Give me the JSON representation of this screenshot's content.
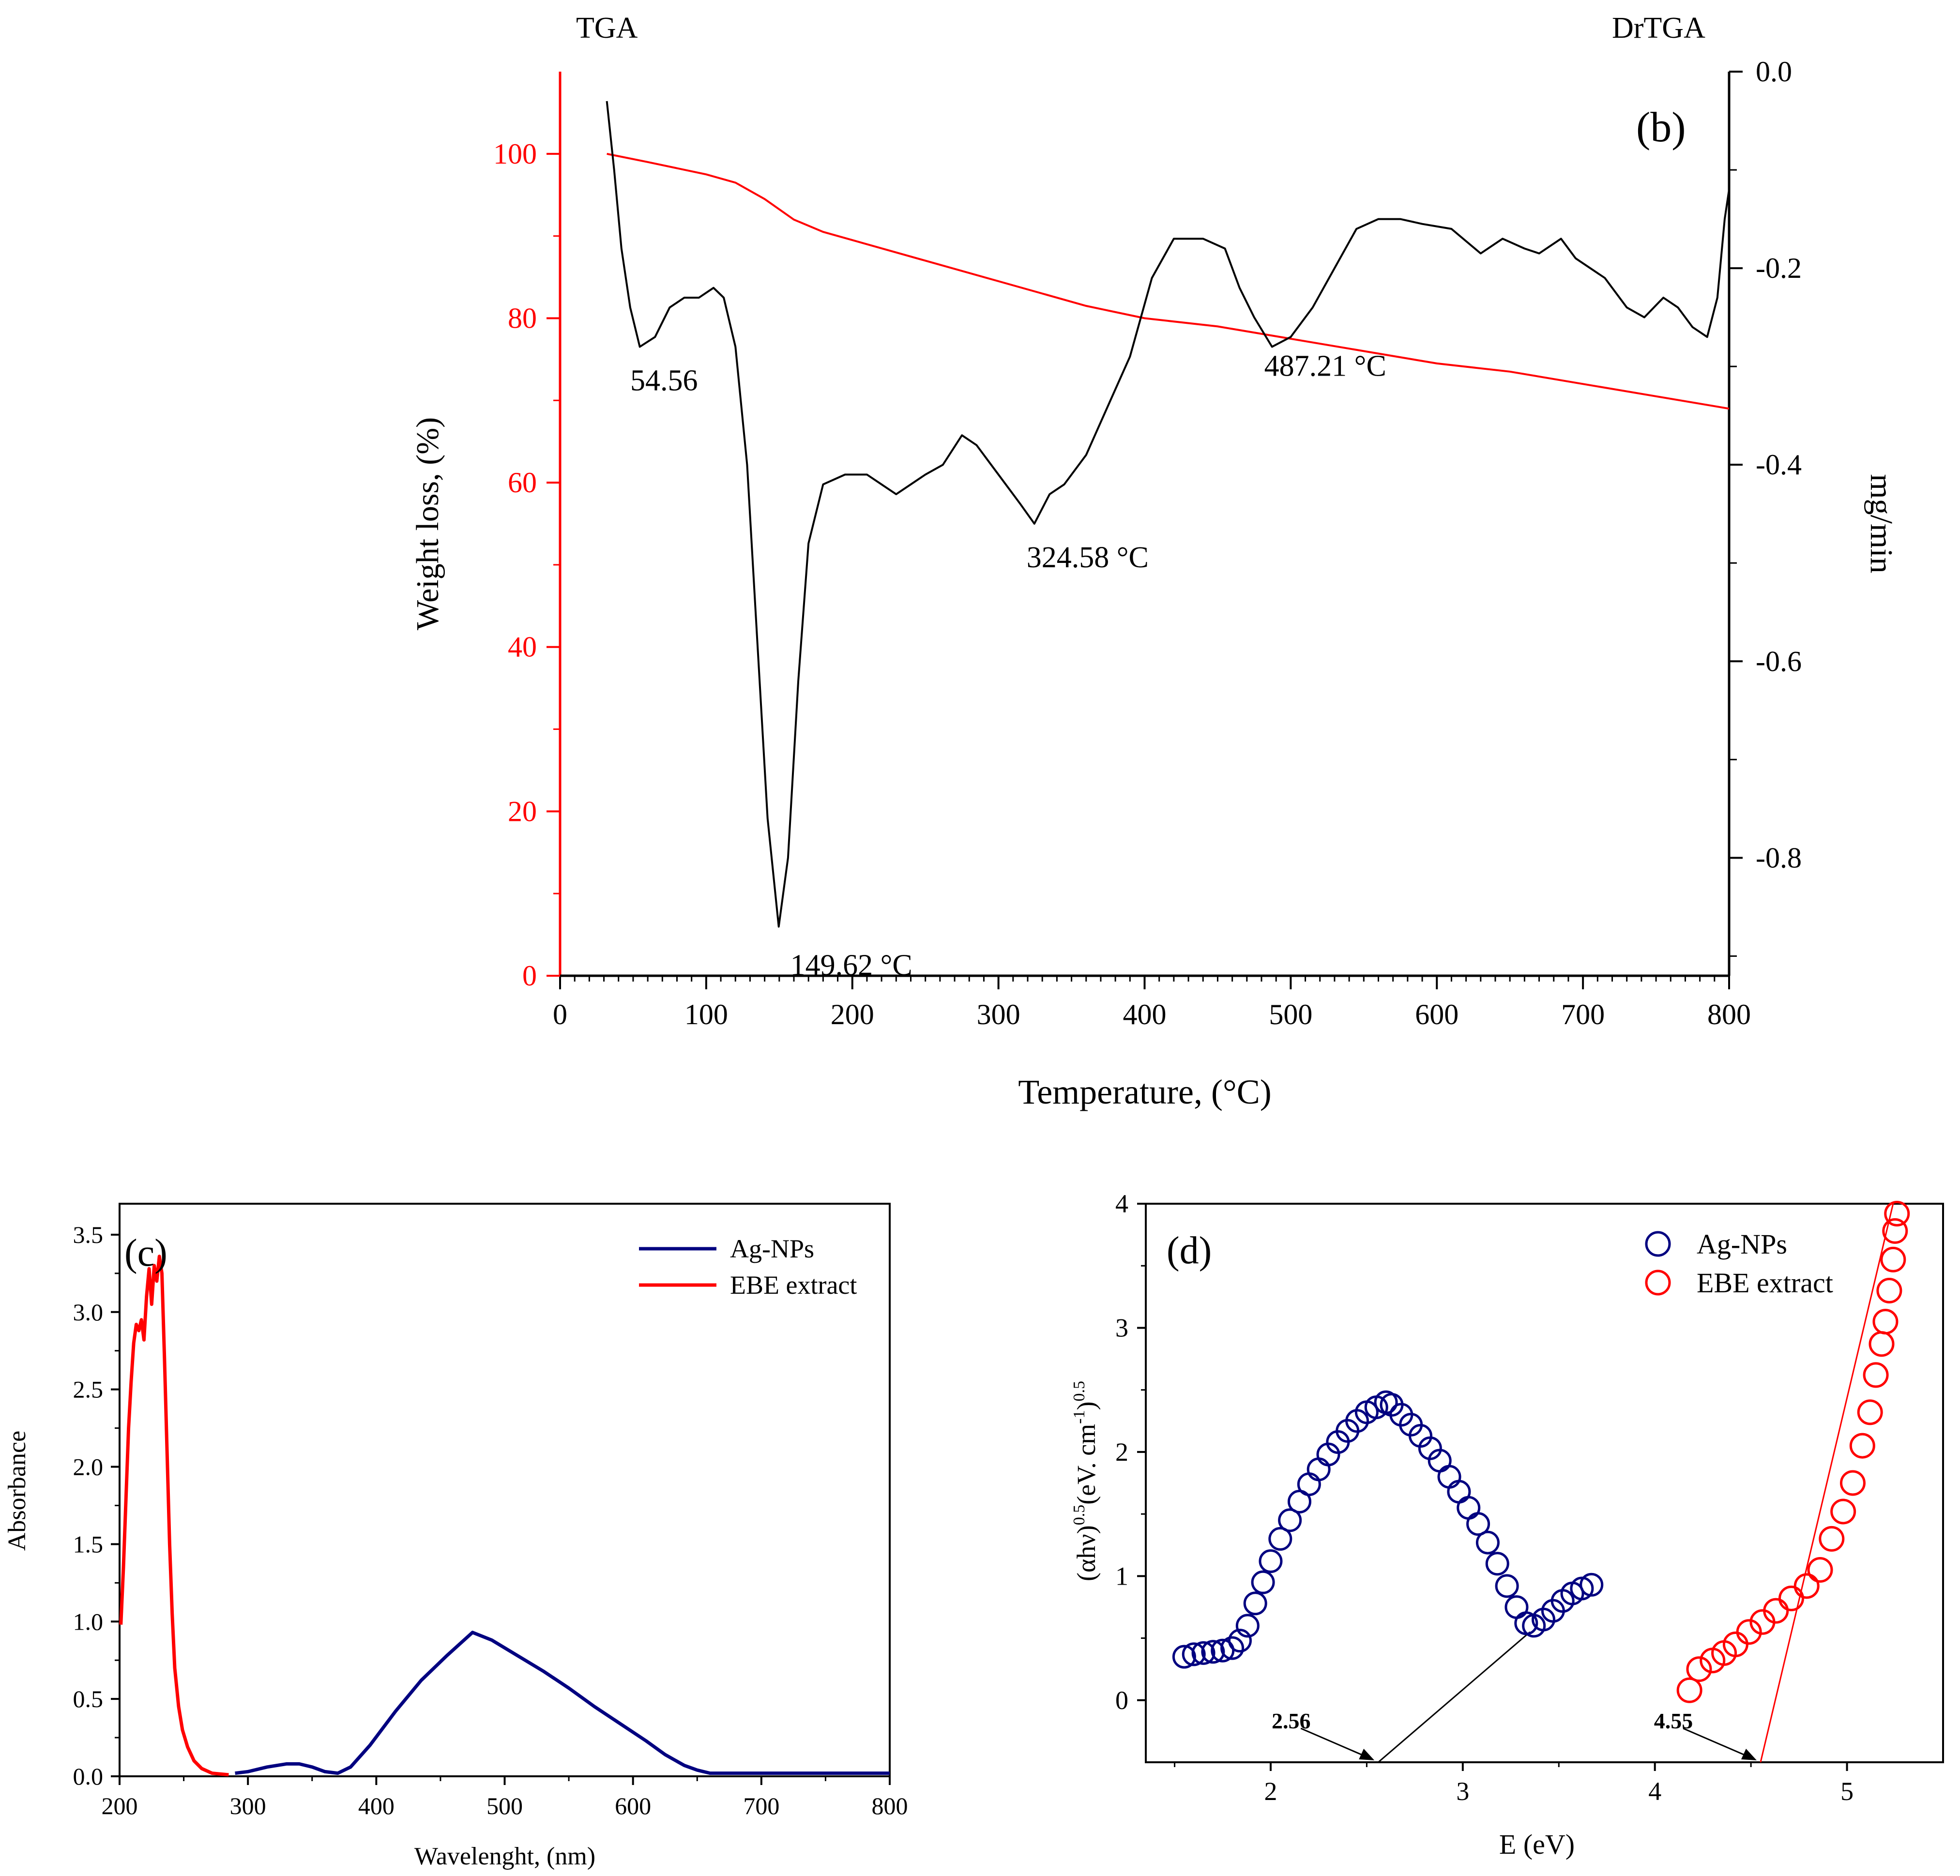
{
  "colors": {
    "tga": "#ff0000",
    "drtga": "#000000",
    "ag": "#000080",
    "ebe": "#ff0000",
    "axis": "#000000"
  },
  "chart_data": [
    {
      "id": "b",
      "type": "line",
      "panel_label": "(b)",
      "left_title": "TGA",
      "right_title": "DrTGA",
      "xlabel": "Temperature, (°C)",
      "ylabel": "Weight loss, (%)",
      "y2label": "mg/min",
      "xlim": [
        0,
        800
      ],
      "ylim": [
        0,
        110
      ],
      "y2lim": [
        -0.92,
        0.0
      ],
      "xticks": [
        0,
        100,
        200,
        300,
        400,
        500,
        600,
        700,
        800
      ],
      "yticks": [
        0,
        20,
        40,
        60,
        80,
        100
      ],
      "y2ticks": [
        0.0,
        -0.2,
        -0.4,
        -0.6,
        -0.8
      ],
      "y2tick_labels": [
        "0.0",
        "-0.2",
        "-0.4",
        "-0.6",
        "-0.8"
      ],
      "series": [
        {
          "name": "TGA",
          "axis": "left",
          "color": "#ff0000",
          "points": [
            [
              32,
              100
            ],
            [
              60,
              99
            ],
            [
              100,
              97.5
            ],
            [
              120,
              96.5
            ],
            [
              140,
              94.5
            ],
            [
              160,
              92
            ],
            [
              180,
              90.5
            ],
            [
              200,
              89.5
            ],
            [
              250,
              87
            ],
            [
              300,
              84.5
            ],
            [
              330,
              83
            ],
            [
              360,
              81.5
            ],
            [
              400,
              80
            ],
            [
              450,
              79
            ],
            [
              500,
              77.5
            ],
            [
              550,
              76
            ],
            [
              600,
              74.5
            ],
            [
              650,
              73.5
            ],
            [
              700,
              72
            ],
            [
              750,
              70.5
            ],
            [
              800,
              69
            ]
          ]
        },
        {
          "name": "DrTGA",
          "axis": "right",
          "color": "#000000",
          "points": [
            [
              32,
              -0.03
            ],
            [
              37,
              -0.1
            ],
            [
              42,
              -0.18
            ],
            [
              48,
              -0.24
            ],
            [
              54.56,
              -0.28
            ],
            [
              65,
              -0.27
            ],
            [
              75,
              -0.24
            ],
            [
              85,
              -0.23
            ],
            [
              95,
              -0.23
            ],
            [
              105,
              -0.22
            ],
            [
              112,
              -0.23
            ],
            [
              120,
              -0.28
            ],
            [
              128,
              -0.4
            ],
            [
              135,
              -0.58
            ],
            [
              142,
              -0.76
            ],
            [
              149.62,
              -0.87
            ],
            [
              156,
              -0.8
            ],
            [
              163,
              -0.62
            ],
            [
              170,
              -0.48
            ],
            [
              180,
              -0.42
            ],
            [
              195,
              -0.41
            ],
            [
              210,
              -0.41
            ],
            [
              220,
              -0.42
            ],
            [
              230,
              -0.43
            ],
            [
              240,
              -0.42
            ],
            [
              250,
              -0.41
            ],
            [
              262,
              -0.4
            ],
            [
              275,
              -0.37
            ],
            [
              285,
              -0.38
            ],
            [
              300,
              -0.41
            ],
            [
              315,
              -0.44
            ],
            [
              324.58,
              -0.46
            ],
            [
              335,
              -0.43
            ],
            [
              345,
              -0.42
            ],
            [
              360,
              -0.39
            ],
            [
              375,
              -0.34
            ],
            [
              390,
              -0.29
            ],
            [
              405,
              -0.21
            ],
            [
              420,
              -0.17
            ],
            [
              440,
              -0.17
            ],
            [
              455,
              -0.18
            ],
            [
              465,
              -0.22
            ],
            [
              475,
              -0.25
            ],
            [
              487.21,
              -0.28
            ],
            [
              500,
              -0.27
            ],
            [
              515,
              -0.24
            ],
            [
              530,
              -0.2
            ],
            [
              545,
              -0.16
            ],
            [
              560,
              -0.15
            ],
            [
              575,
              -0.15
            ],
            [
              590,
              -0.155
            ],
            [
              610,
              -0.16
            ],
            [
              630,
              -0.185
            ],
            [
              645,
              -0.17
            ],
            [
              660,
              -0.18
            ],
            [
              670,
              -0.185
            ],
            [
              685,
              -0.17
            ],
            [
              695,
              -0.19
            ],
            [
              715,
              -0.21
            ],
            [
              730,
              -0.24
            ],
            [
              742,
              -0.25
            ],
            [
              755,
              -0.23
            ],
            [
              765,
              -0.24
            ],
            [
              775,
              -0.26
            ],
            [
              785,
              -0.27
            ],
            [
              792,
              -0.23
            ],
            [
              797,
              -0.15
            ],
            [
              800,
              -0.12
            ]
          ]
        }
      ],
      "annotations": [
        {
          "text": "54.56",
          "x": 54.56,
          "y2": -0.28
        },
        {
          "text": "149.62 °C",
          "x": 149.62,
          "y2": -0.87
        },
        {
          "text": "324.58 °C",
          "x": 324.58,
          "y2": -0.46
        },
        {
          "text": "487.21  °C",
          "x": 487.21,
          "y2": -0.28
        }
      ]
    },
    {
      "id": "c",
      "type": "line",
      "panel_label": "(c)",
      "xlabel": "Wavelenght, (nm)",
      "ylabel": "Absorbance",
      "xlim": [
        200,
        800
      ],
      "ylim": [
        0,
        3.7
      ],
      "xticks": [
        200,
        300,
        400,
        500,
        600,
        700,
        800
      ],
      "yticks": [
        0.0,
        0.5,
        1.0,
        1.5,
        2.0,
        2.5,
        3.0,
        3.5
      ],
      "ytick_labels": [
        "0.0",
        "0.5",
        "1.0",
        "1.5",
        "2.0",
        "2.5",
        "3.0",
        "3.5"
      ],
      "legend_position": "top-right",
      "series": [
        {
          "name": "Ag-NPs",
          "color": "#000080",
          "points": [
            [
              290,
              0.02
            ],
            [
              300,
              0.03
            ],
            [
              315,
              0.06
            ],
            [
              330,
              0.08
            ],
            [
              340,
              0.08
            ],
            [
              350,
              0.06
            ],
            [
              360,
              0.03
            ],
            [
              370,
              0.02
            ],
            [
              380,
              0.06
            ],
            [
              395,
              0.2
            ],
            [
              415,
              0.42
            ],
            [
              435,
              0.62
            ],
            [
              455,
              0.78
            ],
            [
              475,
              0.93
            ],
            [
              490,
              0.88
            ],
            [
              510,
              0.78
            ],
            [
              530,
              0.68
            ],
            [
              550,
              0.57
            ],
            [
              570,
              0.45
            ],
            [
              590,
              0.34
            ],
            [
              610,
              0.23
            ],
            [
              625,
              0.14
            ],
            [
              640,
              0.07
            ],
            [
              650,
              0.04
            ],
            [
              660,
              0.02
            ],
            [
              700,
              0.02
            ],
            [
              750,
              0.02
            ],
            [
              800,
              0.02
            ]
          ]
        },
        {
          "name": "EBE extract",
          "color": "#ff0000",
          "points": [
            [
              201,
              0.98
            ],
            [
              203,
              1.35
            ],
            [
              205,
              1.8
            ],
            [
              207,
              2.25
            ],
            [
              209,
              2.55
            ],
            [
              211,
              2.8
            ],
            [
              213,
              2.92
            ],
            [
              215,
              2.88
            ],
            [
              217,
              2.95
            ],
            [
              219,
              2.82
            ],
            [
              221,
              3.1
            ],
            [
              223,
              3.28
            ],
            [
              225,
              3.05
            ],
            [
              227,
              3.3
            ],
            [
              229,
              3.2
            ],
            [
              231,
              3.36
            ],
            [
              233,
              3.25
            ],
            [
              235,
              2.7
            ],
            [
              237,
              2.1
            ],
            [
              239,
              1.5
            ],
            [
              241,
              1.05
            ],
            [
              243,
              0.7
            ],
            [
              246,
              0.45
            ],
            [
              249,
              0.3
            ],
            [
              253,
              0.19
            ],
            [
              258,
              0.1
            ],
            [
              264,
              0.05
            ],
            [
              272,
              0.02
            ],
            [
              285,
              0.01
            ]
          ]
        }
      ]
    },
    {
      "id": "d",
      "type": "scatter",
      "panel_label": "(d)",
      "xlabel": "E (eV)",
      "ylabel": "(αhν)^0.5 (eV. cm^-1)^0.5",
      "ylabel_parts": [
        "(αhν)",
        "0.5",
        "(eV. cm",
        "-1",
        ")",
        "0.5"
      ],
      "xlim": [
        1.35,
        5.5
      ],
      "ylim": [
        -0.5,
        4
      ],
      "xticks": [
        2,
        3,
        4,
        5
      ],
      "yticks": [
        0,
        1,
        2,
        3,
        4
      ],
      "legend_position": "top-right",
      "series": [
        {
          "name": "Ag-NPs",
          "color": "#000080",
          "marker": "open-circle",
          "x": [
            1.55,
            1.6,
            1.65,
            1.7,
            1.75,
            1.8,
            1.84,
            1.88,
            1.92,
            1.96,
            2.0,
            2.05,
            2.1,
            2.15,
            2.2,
            2.25,
            2.3,
            2.35,
            2.4,
            2.45,
            2.5,
            2.55,
            2.6,
            2.63,
            2.68,
            2.73,
            2.78,
            2.83,
            2.88,
            2.93,
            2.98,
            3.03,
            3.08,
            3.13,
            3.18,
            3.23,
            3.28,
            3.33,
            3.37,
            3.42,
            3.47,
            3.52,
            3.57,
            3.62,
            3.67
          ],
          "y": [
            0.35,
            0.37,
            0.38,
            0.39,
            0.4,
            0.42,
            0.48,
            0.6,
            0.78,
            0.95,
            1.12,
            1.3,
            1.45,
            1.6,
            1.74,
            1.86,
            1.98,
            2.08,
            2.17,
            2.25,
            2.32,
            2.36,
            2.4,
            2.38,
            2.3,
            2.22,
            2.13,
            2.03,
            1.93,
            1.8,
            1.68,
            1.55,
            1.42,
            1.27,
            1.1,
            0.92,
            0.75,
            0.62,
            0.6,
            0.65,
            0.72,
            0.8,
            0.86,
            0.9,
            0.93
          ]
        },
        {
          "name": "EBE extract",
          "color": "#ff0000",
          "marker": "open-circle",
          "x": [
            4.18,
            4.23,
            4.3,
            4.36,
            4.42,
            4.49,
            4.56,
            4.63,
            4.71,
            4.79,
            4.86,
            4.92,
            4.98,
            5.03,
            5.08,
            5.12,
            5.15,
            5.18,
            5.2,
            5.22,
            5.24,
            5.25,
            5.26
          ],
          "y": [
            0.08,
            0.25,
            0.32,
            0.38,
            0.45,
            0.55,
            0.63,
            0.72,
            0.82,
            0.92,
            1.05,
            1.3,
            1.52,
            1.75,
            2.05,
            2.32,
            2.62,
            2.87,
            3.05,
            3.3,
            3.55,
            3.78,
            3.92
          ]
        }
      ],
      "fit_lines": [
        {
          "series": "Ag-NPs",
          "x1": 2.56,
          "y1": -0.5,
          "x2": 3.35,
          "y2": 0.55,
          "color": "#000000"
        },
        {
          "series": "EBE extract",
          "x1": 4.55,
          "y1": -0.5,
          "x2": 5.24,
          "y2": 4.0,
          "color": "#ff0000"
        }
      ],
      "annotations": [
        {
          "text": "2.56",
          "x": 2.56,
          "y": -0.5
        },
        {
          "text": "4.55",
          "x": 4.55,
          "y": -0.5
        }
      ]
    }
  ]
}
